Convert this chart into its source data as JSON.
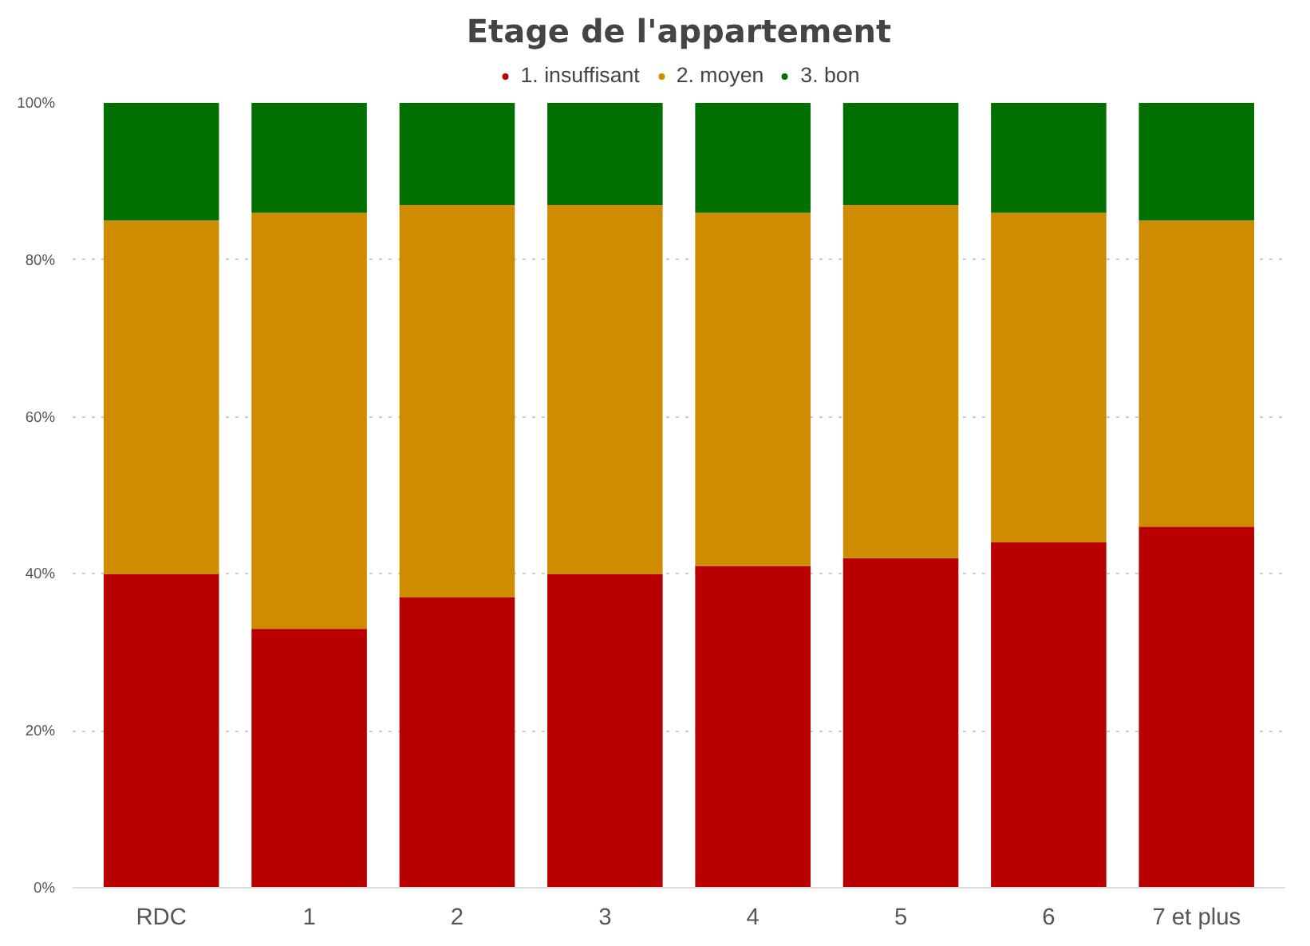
{
  "chart_data": {
    "type": "bar",
    "title": "Etage de l'appartement",
    "stacked": true,
    "categories": [
      "RDC",
      "1",
      "2",
      "3",
      "4",
      "5",
      "6",
      "7 et plus"
    ],
    "series": [
      {
        "name": "1. insuffisant",
        "color": "#b80000",
        "values": [
          40,
          33,
          37,
          40,
          41,
          42,
          44,
          46
        ]
      },
      {
        "name": "2. moyen",
        "color": "#d08c00",
        "values": [
          45,
          53,
          50,
          47,
          45,
          45,
          42,
          39
        ]
      },
      {
        "name": "3. bon",
        "color": "#007000",
        "values": [
          15,
          14,
          13,
          13,
          14,
          13,
          14,
          15
        ]
      }
    ],
    "ylim": [
      0,
      100
    ],
    "yticks": [
      {
        "value": 0,
        "label": "0%"
      },
      {
        "value": 20,
        "label": "20%"
      },
      {
        "value": 40,
        "label": "40%"
      },
      {
        "value": 60,
        "label": "60%"
      },
      {
        "value": 80,
        "label": "80%"
      },
      {
        "value": 100,
        "label": "100%"
      }
    ],
    "grid": "y",
    "legend": "top"
  }
}
